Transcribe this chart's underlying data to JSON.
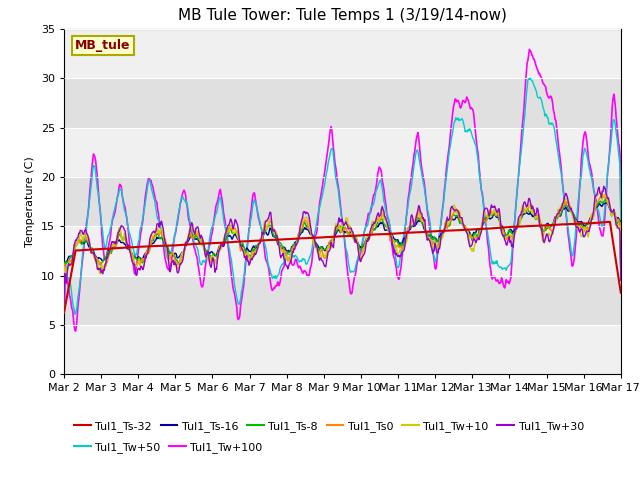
{
  "title": "MB Tule Tower: Tule Temps 1 (3/19/14-now)",
  "ylabel": "Temperature (C)",
  "ylim": [
    0,
    35
  ],
  "yticks": [
    0,
    5,
    10,
    15,
    20,
    25,
    30,
    35
  ],
  "xtick_labels": [
    "Mar 2",
    "Mar 3",
    "Mar 4",
    "Mar 5",
    "Mar 6",
    "Mar 7",
    "Mar 8",
    "Mar 9",
    "Mar 10",
    "Mar 11",
    "Mar 12",
    "Mar 13",
    "Mar 14",
    "Mar 15",
    "Mar 16",
    "Mar 17"
  ],
  "series": [
    {
      "label": "Tul1_Ts-32",
      "color": "#cc0000",
      "lw": 1.5,
      "zorder": 5
    },
    {
      "label": "Tul1_Ts-16",
      "color": "#000099",
      "lw": 1.0,
      "zorder": 4
    },
    {
      "label": "Tul1_Ts-8",
      "color": "#00bb00",
      "lw": 1.0,
      "zorder": 4
    },
    {
      "label": "Tul1_Ts0",
      "color": "#ff8800",
      "lw": 1.0,
      "zorder": 4
    },
    {
      "label": "Tul1_Tw+10",
      "color": "#cccc00",
      "lw": 1.0,
      "zorder": 4
    },
    {
      "label": "Tul1_Tw+30",
      "color": "#9900cc",
      "lw": 1.0,
      "zorder": 4
    },
    {
      "label": "Tul1_Tw+50",
      "color": "#00cccc",
      "lw": 1.0,
      "zorder": 3
    },
    {
      "label": "Tul1_Tw+100",
      "color": "#ff00ff",
      "lw": 1.2,
      "zorder": 2
    }
  ],
  "station_label": "MB_tule",
  "station_label_color": "#880000",
  "station_box_facecolor": "#ffffcc",
  "station_box_edgecolor": "#aaaa00",
  "background_color": "#ffffff",
  "plot_bg_color": "#e0e0e0",
  "band_color_light": "#f0f0f0",
  "title_fontsize": 11,
  "axis_fontsize": 8,
  "legend_fontsize": 8
}
